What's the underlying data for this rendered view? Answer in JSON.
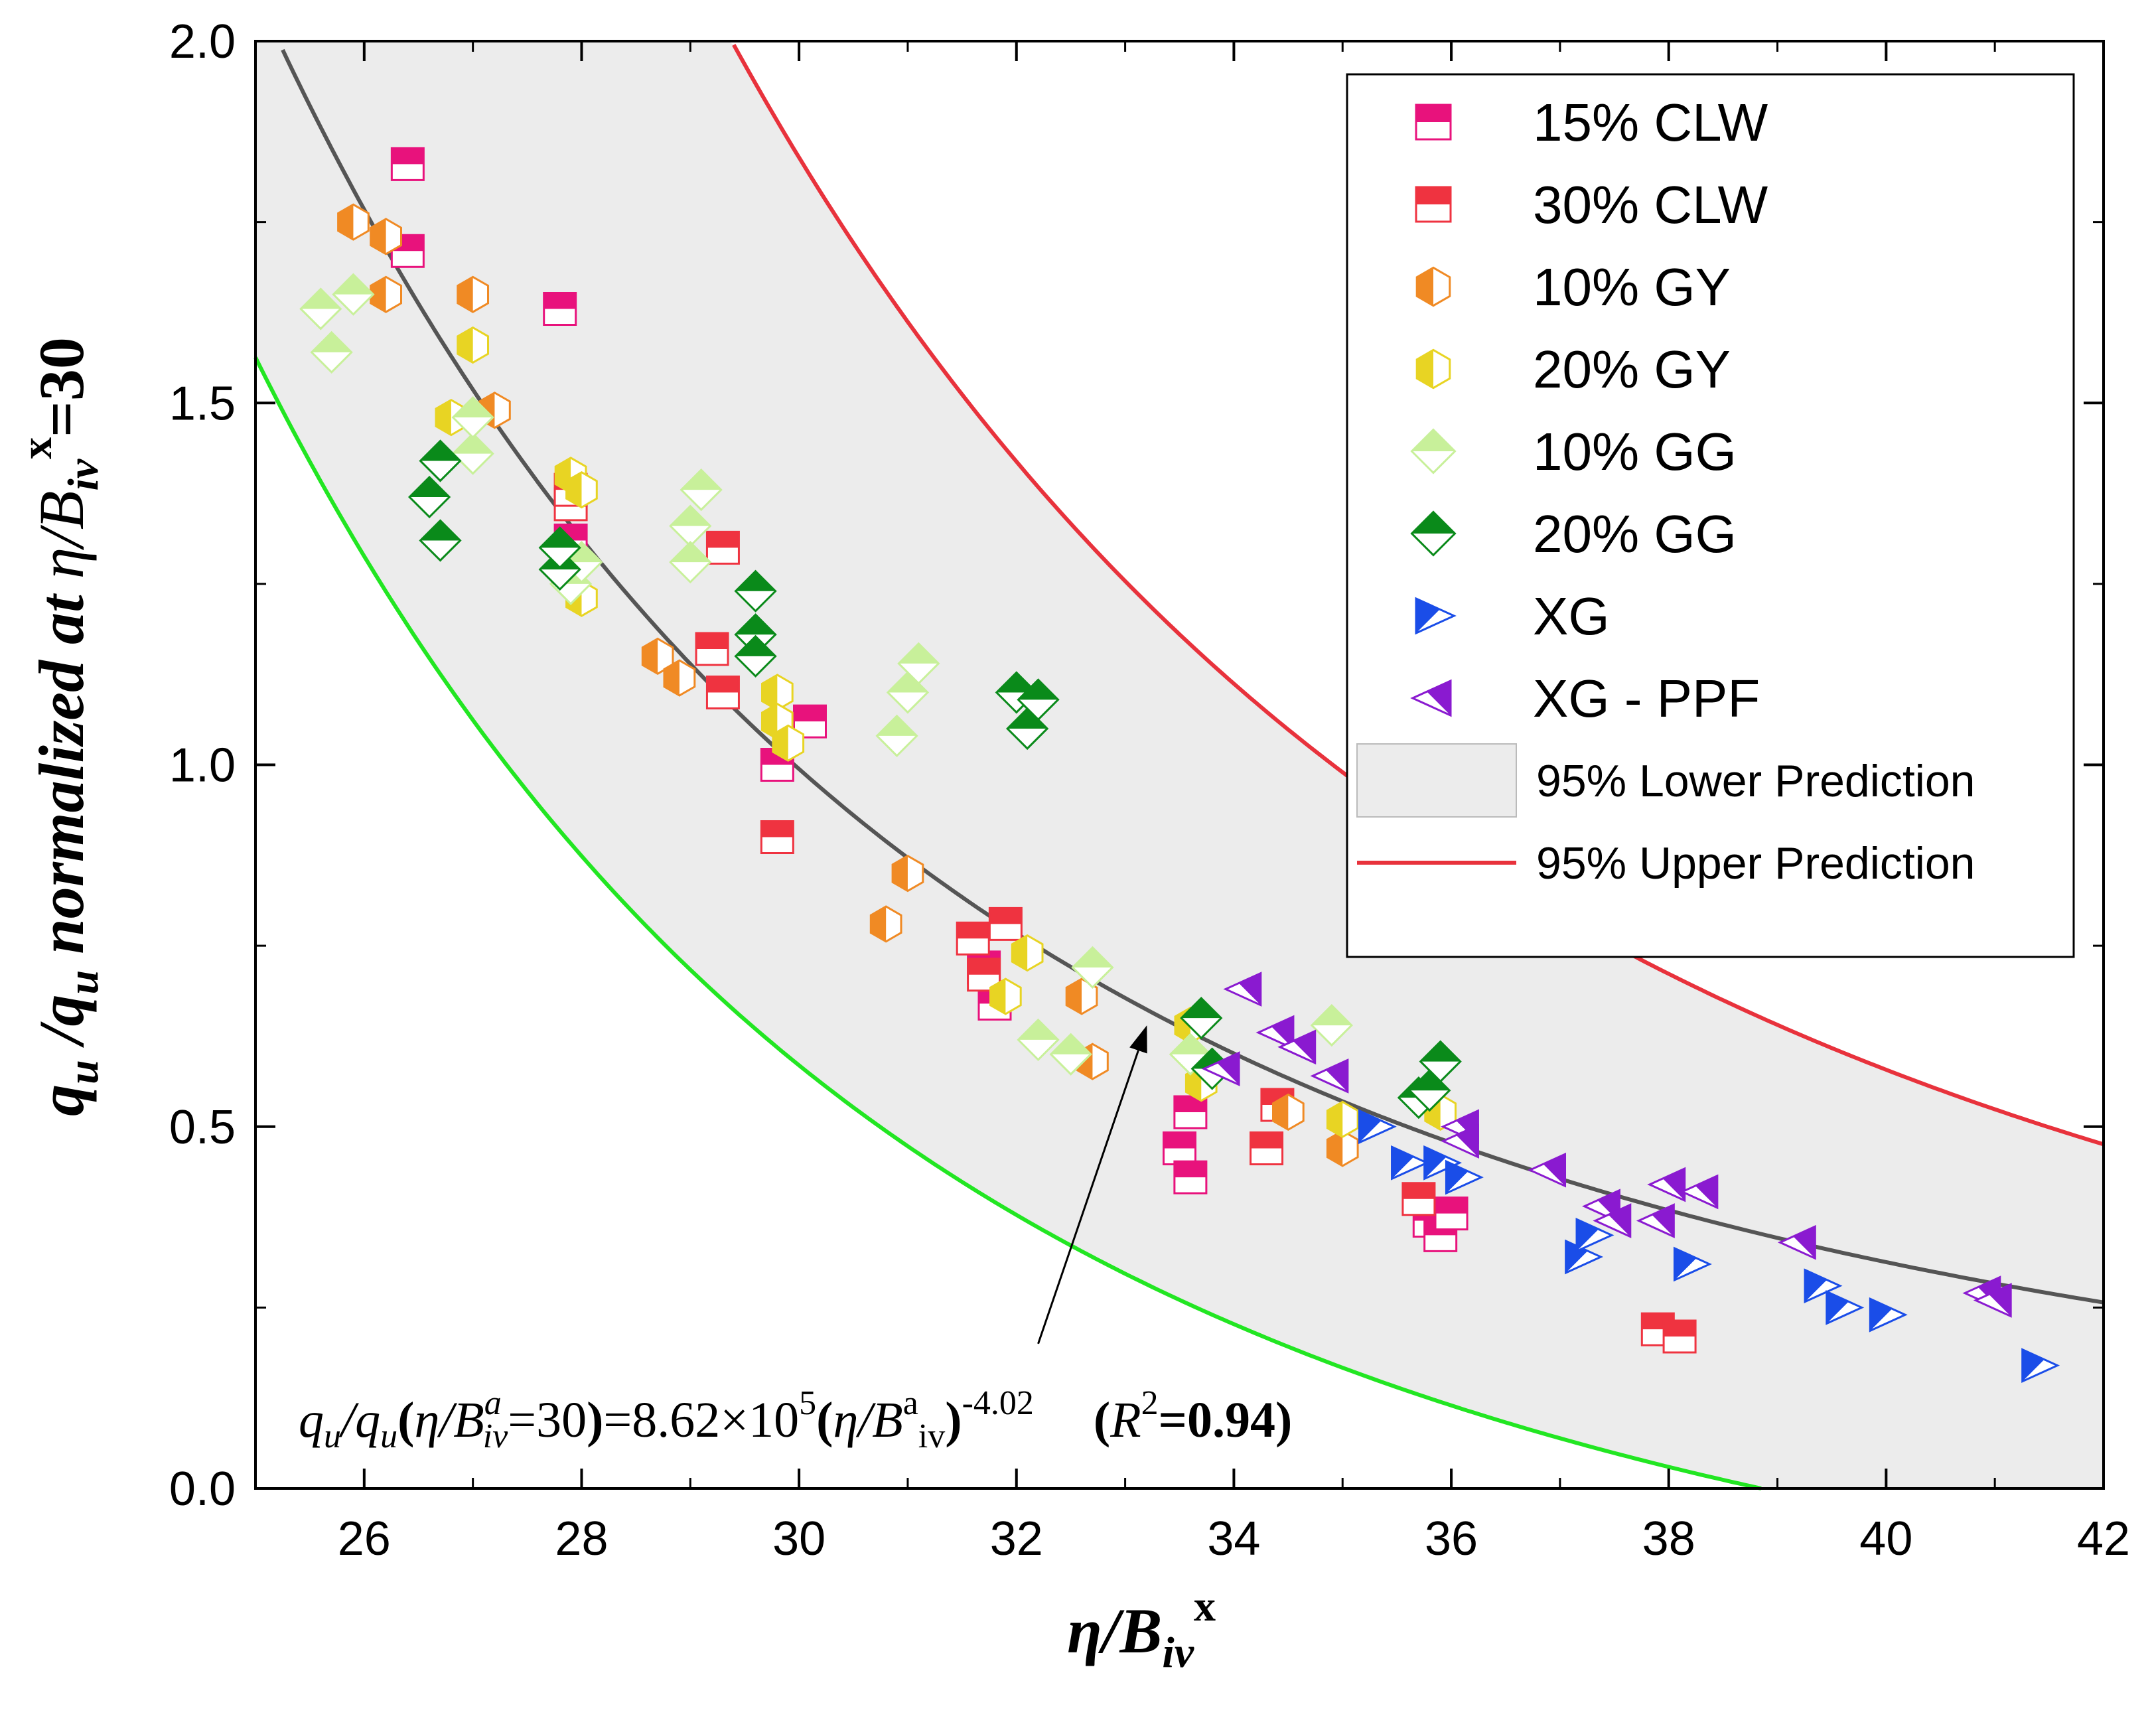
{
  "chart_data": {
    "type": "scatter",
    "xlabel_main": "η/B",
    "xlabel_sub": "iv",
    "xlabel_sup": "x",
    "ylabel_prefix": "q",
    "ylabel_sub1": "u",
    "ylabel_slash": " /q",
    "ylabel_sub2": "u",
    "ylabel_mid": " normalized at ",
    "ylabel_eta": "η/B",
    "ylabel_sub3": "iv",
    "ylabel_sup": "x",
    "ylabel_end": "=30",
    "xlim": [
      25,
      42
    ],
    "ylim": [
      0,
      2.0
    ],
    "xticks": [
      26,
      28,
      30,
      32,
      34,
      36,
      38,
      40,
      42
    ],
    "yticks": [
      0.0,
      0.5,
      1.0,
      1.5,
      2.0
    ],
    "ytick_labels": [
      "0.0",
      "0.5",
      "1.0",
      "1.5",
      "2.0"
    ],
    "fit": {
      "coefficient": 862000,
      "exponent": -4.02,
      "color": "#555555"
    },
    "upper_prediction": {
      "coefficient": 862000,
      "exponent": -4.02,
      "scale": 1.85,
      "color": "#e8323c"
    },
    "lower_prediction": {
      "coefficient": 862000,
      "exponent": -4.02,
      "offset": -0.32,
      "scale": 0.91,
      "color": "#22e622"
    },
    "band_color": "#ececec",
    "legend": [
      {
        "label": "15% CLW",
        "marker": "square",
        "color": "#e8127c"
      },
      {
        "label": "30% CLW",
        "marker": "square",
        "color": "#ef3340"
      },
      {
        "label": "10% GY",
        "marker": "hexagon",
        "color": "#f08a24"
      },
      {
        "label": "20% GY",
        "marker": "hexagon",
        "color": "#e8d423"
      },
      {
        "label": "10% GG",
        "marker": "diamond",
        "color": "#c8f09a"
      },
      {
        "label": "20% GG",
        "marker": "diamond",
        "color": "#0a8a1a"
      },
      {
        "label": "XG",
        "marker": "tri-right",
        "color": "#1a4de8"
      },
      {
        "label": "XG - PPF",
        "marker": "tri-left",
        "color": "#8a1ad0"
      },
      {
        "label": "95% Lower Prediction",
        "marker": "band",
        "color": "#ececec"
      },
      {
        "label": "95% Upper Prediction",
        "marker": "line",
        "color": "#e8323c"
      }
    ],
    "series": [
      {
        "name": "15% CLW",
        "points": [
          [
            26.4,
            1.83
          ],
          [
            26.4,
            1.71
          ],
          [
            27.8,
            1.63
          ],
          [
            27.9,
            1.31
          ],
          [
            30.1,
            1.06
          ],
          [
            29.8,
            1.0
          ],
          [
            31.8,
            0.67
          ],
          [
            31.7,
            0.72
          ],
          [
            33.5,
            0.47
          ],
          [
            33.6,
            0.43
          ],
          [
            33.6,
            0.52
          ],
          [
            35.8,
            0.37
          ],
          [
            35.9,
            0.35
          ],
          [
            36.0,
            0.38
          ]
        ]
      },
      {
        "name": "30% CLW",
        "points": [
          [
            27.9,
            1.36
          ],
          [
            27.9,
            1.38
          ],
          [
            29.3,
            1.3
          ],
          [
            29.2,
            1.16
          ],
          [
            29.3,
            1.1
          ],
          [
            29.8,
            0.9
          ],
          [
            31.6,
            0.76
          ],
          [
            31.9,
            0.78
          ],
          [
            31.7,
            0.71
          ],
          [
            34.3,
            0.47
          ],
          [
            34.4,
            0.53
          ],
          [
            35.7,
            0.4
          ],
          [
            37.9,
            0.22
          ],
          [
            38.1,
            0.21
          ]
        ]
      },
      {
        "name": "10% GY",
        "points": [
          [
            25.9,
            1.75
          ],
          [
            26.2,
            1.73
          ],
          [
            26.2,
            1.65
          ],
          [
            27.0,
            1.65
          ],
          [
            27.2,
            1.49
          ],
          [
            28.7,
            1.15
          ],
          [
            28.9,
            1.12
          ],
          [
            30.8,
            0.78
          ],
          [
            31.0,
            0.85
          ],
          [
            32.6,
            0.68
          ],
          [
            32.7,
            0.59
          ],
          [
            34.5,
            0.52
          ],
          [
            35.0,
            0.47
          ]
        ]
      },
      {
        "name": "20% GY",
        "points": [
          [
            26.8,
            1.48
          ],
          [
            27.0,
            1.58
          ],
          [
            28.0,
            1.23
          ],
          [
            27.9,
            1.4
          ],
          [
            28.0,
            1.38
          ],
          [
            29.8,
            1.1
          ],
          [
            29.8,
            1.06
          ],
          [
            29.9,
            1.03
          ],
          [
            31.9,
            0.68
          ],
          [
            32.1,
            0.74
          ],
          [
            33.6,
            0.64
          ],
          [
            33.7,
            0.56
          ],
          [
            35.0,
            0.51
          ],
          [
            35.9,
            0.52
          ]
        ]
      },
      {
        "name": "10% GG",
        "points": [
          [
            25.6,
            1.63
          ],
          [
            25.7,
            1.57
          ],
          [
            25.9,
            1.65
          ],
          [
            27.0,
            1.43
          ],
          [
            27.0,
            1.48
          ],
          [
            27.9,
            1.25
          ],
          [
            28.0,
            1.28
          ],
          [
            29.0,
            1.33
          ],
          [
            29.0,
            1.28
          ],
          [
            29.1,
            1.38
          ],
          [
            30.9,
            1.04
          ],
          [
            31.0,
            1.1
          ],
          [
            31.1,
            1.14
          ],
          [
            32.2,
            0.62
          ],
          [
            32.5,
            0.6
          ],
          [
            32.7,
            0.72
          ],
          [
            33.6,
            0.6
          ],
          [
            34.9,
            0.64
          ]
        ]
      },
      {
        "name": "20% GG",
        "points": [
          [
            26.7,
            1.42
          ],
          [
            26.6,
            1.37
          ],
          [
            26.7,
            1.31
          ],
          [
            27.8,
            1.27
          ],
          [
            27.8,
            1.3
          ],
          [
            29.6,
            1.24
          ],
          [
            29.6,
            1.18
          ],
          [
            29.6,
            1.15
          ],
          [
            32.0,
            1.1
          ],
          [
            32.2,
            1.09
          ],
          [
            32.1,
            1.05
          ],
          [
            33.7,
            0.65
          ],
          [
            33.8,
            0.58
          ],
          [
            35.7,
            0.54
          ],
          [
            35.9,
            0.59
          ],
          [
            35.8,
            0.55
          ]
        ]
      },
      {
        "name": "XG",
        "points": [
          [
            35.3,
            0.5
          ],
          [
            35.6,
            0.45
          ],
          [
            35.9,
            0.45
          ],
          [
            36.1,
            0.43
          ],
          [
            37.2,
            0.32
          ],
          [
            37.3,
            0.35
          ],
          [
            38.2,
            0.31
          ],
          [
            39.4,
            0.28
          ],
          [
            39.6,
            0.25
          ],
          [
            40.0,
            0.24
          ],
          [
            41.4,
            0.17
          ]
        ]
      },
      {
        "name": "XG - PPF",
        "points": [
          [
            34.1,
            0.69
          ],
          [
            34.4,
            0.63
          ],
          [
            34.6,
            0.61
          ],
          [
            34.9,
            0.57
          ],
          [
            33.9,
            0.58
          ],
          [
            36.1,
            0.5
          ],
          [
            36.1,
            0.48
          ],
          [
            36.9,
            0.44
          ],
          [
            37.4,
            0.39
          ],
          [
            37.5,
            0.37
          ],
          [
            37.9,
            0.37
          ],
          [
            38.0,
            0.42
          ],
          [
            38.3,
            0.41
          ],
          [
            39.2,
            0.34
          ],
          [
            40.9,
            0.27
          ],
          [
            41.0,
            0.26
          ]
        ]
      }
    ],
    "annotation": {
      "q": "q",
      "u": "u",
      "slash_q": "/q",
      "open": "(",
      "eta_b": "η/B",
      "a": "a",
      "iv": "iv",
      "eq30": "=30",
      "close": ")",
      "mid": "=8.62×10",
      "five": "5",
      "open2": "(",
      "eta_b2": "η/B",
      "a2": "a",
      "iv2": "iv",
      "close2": ")",
      "exp": "-4.02",
      "r_open": "(",
      "r": "R",
      "two": "2",
      "r_end": "=0.94)",
      "arrow_target": [
        33.2,
        0.64
      ],
      "arrow_tail": [
        32.2,
        0.2
      ]
    }
  }
}
